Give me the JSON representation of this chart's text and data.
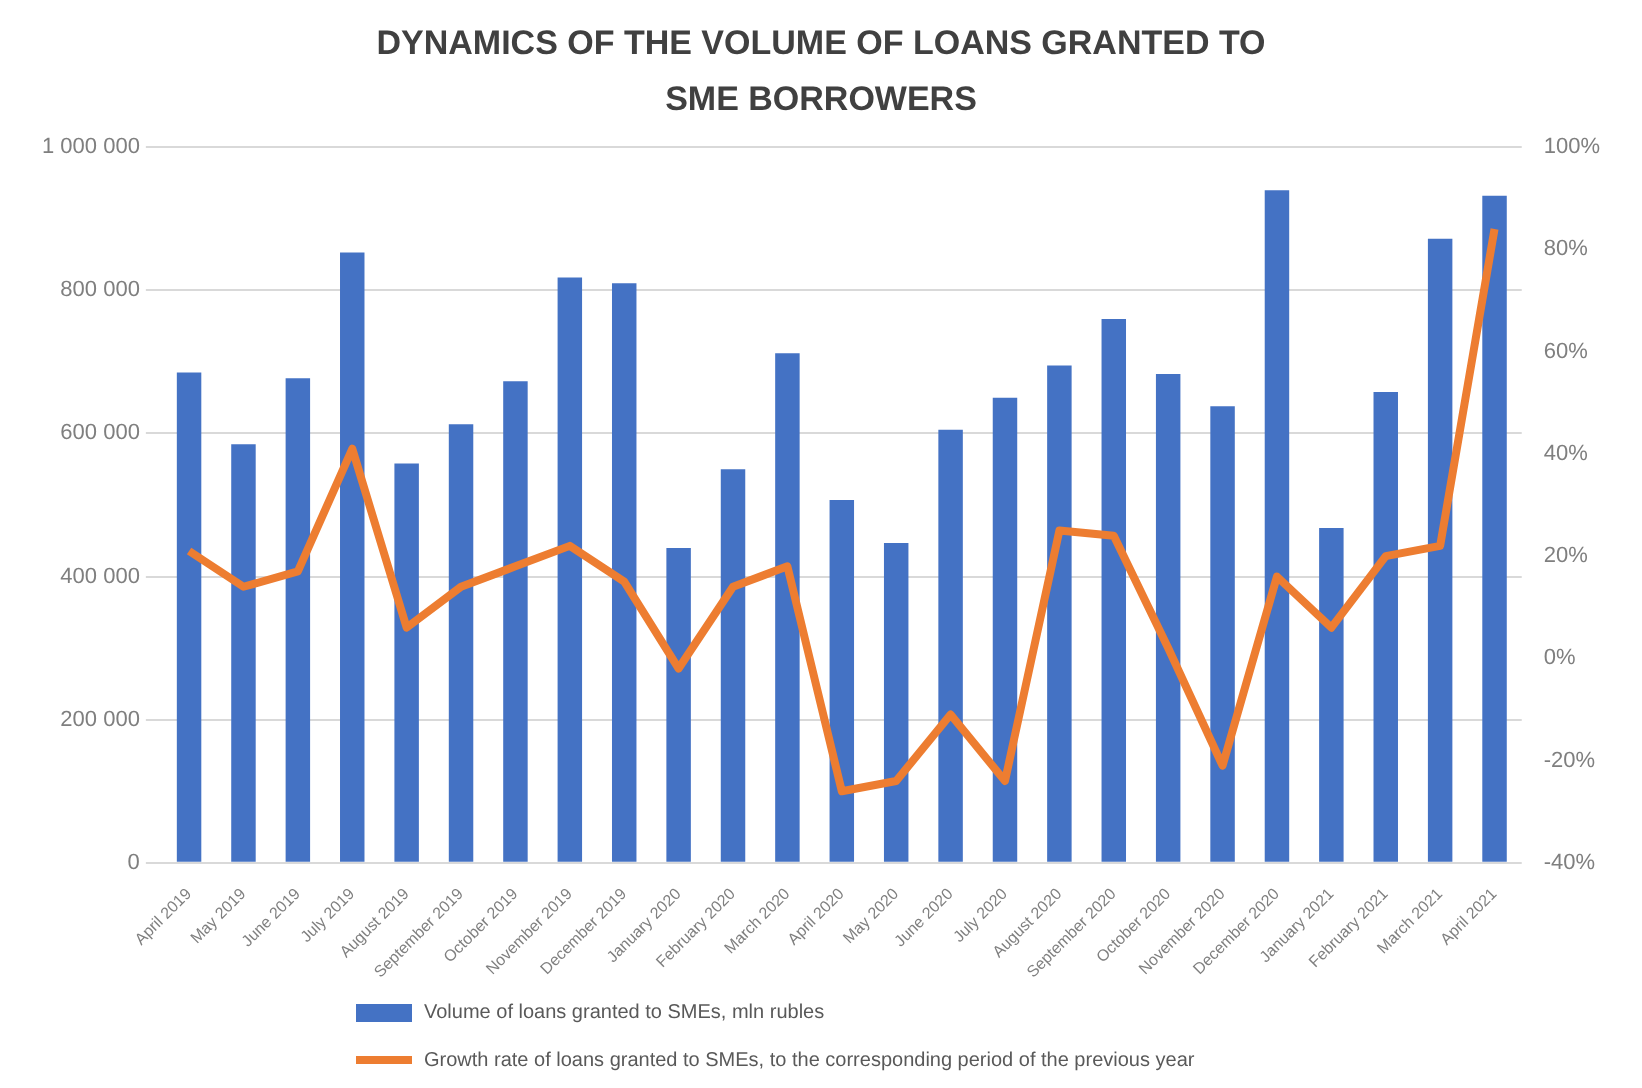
{
  "chart_data": {
    "type": "bar",
    "title": "DYNAMICS OF THE VOLUME OF LOANS GRANTED TO SME BORROWERS",
    "categories": [
      "April 2019",
      "May 2019",
      "June 2019",
      "July 2019",
      "August 2019",
      "September 2019",
      "October 2019",
      "November 2019",
      "December 2019",
      "January 2020",
      "February 2020",
      "March 2020",
      "April 2020",
      "May 2020",
      "June 2020",
      "July 2020",
      "August 2020",
      "September 2020",
      "October 2020",
      "November 2020",
      "December 2020",
      "January 2021",
      "February 2021",
      "March 2021",
      "April 2021"
    ],
    "series": [
      {
        "name": "Volume of loans granted to SMEs, mln rubles",
        "color": "#4472c4",
        "values": [
          685000,
          585000,
          677000,
          853000,
          558000,
          613000,
          673000,
          818000,
          810000,
          440000,
          550000,
          712000,
          507000,
          447000,
          605000,
          650000,
          695000,
          760000,
          683000,
          638000,
          940000,
          468000,
          658000,
          872000,
          932000
        ]
      },
      {
        "name": "Growth rate of loans granted to SMEs, to the corresponding period of the previous year",
        "type": "line",
        "axis": "y2",
        "color": "#ed7d31",
        "values": [
          21,
          14,
          17,
          41,
          6,
          14,
          18,
          22,
          15,
          -2,
          14,
          18,
          -26,
          -24,
          -11,
          -24,
          25,
          24,
          2,
          -21,
          16,
          6,
          20,
          22,
          84
        ]
      }
    ],
    "ylim": [
      0,
      1000000
    ],
    "yticks": [
      0,
      {
        "value": 200000,
        "label": "200 000"
      },
      {
        "value": 400000,
        "label": "400 000"
      },
      {
        "value": 600000,
        "label": "600 000"
      },
      {
        "value": 800000,
        "label": "800 000"
      },
      {
        "value": 1000000,
        "label": "1 000 000"
      }
    ],
    "y2lim": [
      -40,
      100
    ],
    "y2ticks": [
      {
        "value": -40,
        "label": "-40%"
      },
      {
        "value": -20,
        "label": "-20%"
      },
      {
        "value": 0,
        "label": "0%"
      },
      {
        "value": 20,
        "label": "20%"
      },
      {
        "value": 40,
        "label": "40%"
      },
      {
        "value": 60,
        "label": "60%"
      },
      {
        "value": 80,
        "label": "80%"
      },
      {
        "value": 100,
        "label": "100%"
      }
    ],
    "grid": "y",
    "legend": "bottom",
    "marker": "none",
    "line_style": "solid"
  }
}
